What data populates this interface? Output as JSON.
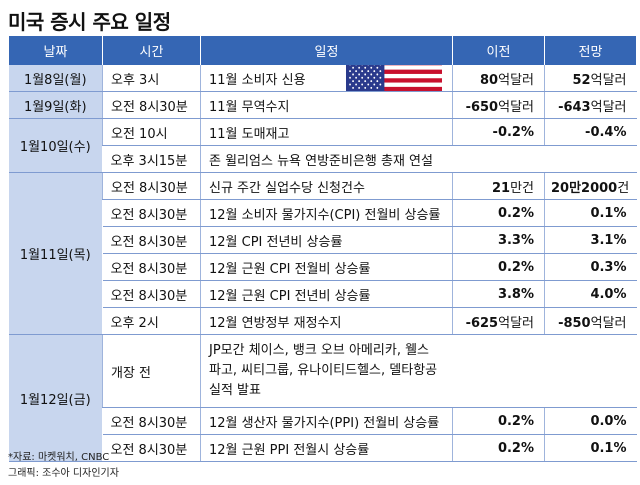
{
  "title": "미국 증시 주요 일정",
  "headers": {
    "date": "날짜",
    "time": "시간",
    "event": "일정",
    "prev": "이전",
    "forecast": "전망"
  },
  "rows": [
    {
      "date": "1월8일(월)",
      "time": "오후 3시",
      "event": "11월 소비자 신용",
      "prev_num": "80",
      "prev_unit": "억달러",
      "fc_num": "52",
      "fc_unit": "억달러"
    },
    {
      "date": "1월9일(화)",
      "time": "오전 8시30분",
      "event": "11월 무역수지",
      "prev_num": "-650",
      "prev_unit": "억달러",
      "fc_num": "-643",
      "fc_unit": "억달러"
    },
    {
      "date": "1월10일(수)",
      "time": "오전 10시",
      "event": "11월 도매재고",
      "prev_num": "-0.2%",
      "prev_unit": "",
      "fc_num": "-0.4%",
      "fc_unit": ""
    },
    {
      "date": "",
      "time": "오후 3시15분",
      "event": "존 윌리엄스 뉴욕 연방준비은행 총재 연설",
      "prev_num": "",
      "prev_unit": "",
      "fc_num": "",
      "fc_unit": ""
    },
    {
      "date": "1월11일(목)",
      "time": "오전 8시30분",
      "event": "신규 주간 실업수당 신청건수",
      "prev_num": "21",
      "prev_unit": "만건",
      "fc_num": "20만2000",
      "fc_unit": "건"
    },
    {
      "date": "",
      "time": "오전 8시30분",
      "event": "12월 소비자 물가지수(CPI) 전월비 상승률",
      "prev_num": "0.2%",
      "prev_unit": "",
      "fc_num": "0.1%",
      "fc_unit": ""
    },
    {
      "date": "",
      "time": "오전 8시30분",
      "event": "12월 CPI 전년비 상승률",
      "prev_num": "3.3%",
      "prev_unit": "",
      "fc_num": "3.1%",
      "fc_unit": ""
    },
    {
      "date": "",
      "time": "오전 8시30분",
      "event": "12월 근원 CPI 전월비 상승률",
      "prev_num": "0.2%",
      "prev_unit": "",
      "fc_num": "0.3%",
      "fc_unit": ""
    },
    {
      "date": "",
      "time": "오전 8시30분",
      "event": "12월 근원 CPI 전년비 상승률",
      "prev_num": "3.8%",
      "prev_unit": "",
      "fc_num": "4.0%",
      "fc_unit": ""
    },
    {
      "date": "",
      "time": "오후 2시",
      "event": "12월 연방정부 재정수지",
      "prev_num": "-625",
      "prev_unit": "억달러",
      "fc_num": "-850",
      "fc_unit": "억달러"
    },
    {
      "date": "1월12일(금)",
      "time": "개장 전",
      "event": "JP모간 체이스, 뱅크 오브 아메리카, 웰스 파고, 씨티그룹, 유나이티드헬스, 델타항공 실적 발표",
      "prev_num": "",
      "prev_unit": "",
      "fc_num": "",
      "fc_unit": ""
    },
    {
      "date": "",
      "time": "오전 8시30분",
      "event": "12월 생산자 물가지수(PPI) 전월비 상승률",
      "prev_num": "0.2%",
      "prev_unit": "",
      "fc_num": "0.0%",
      "fc_unit": ""
    },
    {
      "date": "",
      "time": "오전 8시30분",
      "event": "12월 근원 PPI 전월시 상승률",
      "prev_num": "0.2%",
      "prev_unit": "",
      "fc_num": "0.1%",
      "fc_unit": ""
    }
  ],
  "footer": {
    "source": "*자료: 마켓워치, CNBC",
    "graphic": "그래픽: 조수아 디자인기자"
  },
  "flag": {
    "icon": "us-flag-icon",
    "red": "#c8102e",
    "white": "#ffffff",
    "blue": "#2a3a8c"
  },
  "colors": {
    "header_bg": "#3566b4",
    "date_bg": "#c8d6ee",
    "border": "#7f9bd0"
  }
}
